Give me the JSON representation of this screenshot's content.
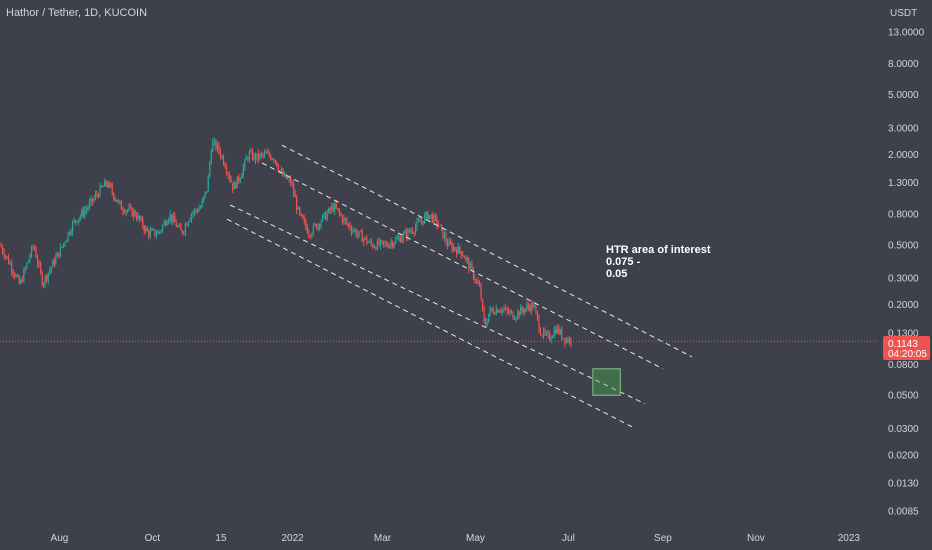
{
  "chart_data": {
    "type": "candlestick",
    "title": "Hathor / Tether, 1D, KUCOIN",
    "currency": "USDT",
    "scale": "log",
    "ylim": [
      0.0075,
      18
    ],
    "y_ticks": [
      "13.0000",
      "8.0000",
      "5.0000",
      "3.0000",
      "2.0000",
      "1.3000",
      "0.8000",
      "0.5000",
      "0.3000",
      "0.2000",
      "0.1300",
      "0.0800",
      "0.0500",
      "0.0300",
      "0.0200",
      "0.0130",
      "0.0085"
    ],
    "x_ticks": [
      "Aug",
      "Oct",
      "15",
      "2022",
      "Mar",
      "May",
      "Jul",
      "Sep",
      "Nov",
      "2023"
    ],
    "last_price": "0.1143",
    "countdown": "04:20:05",
    "annotation": [
      "HTR area of interest",
      "0.075 -",
      "0.05"
    ],
    "colors": {
      "up": "#26a69a",
      "down": "#ef5350",
      "background": "#3e404b",
      "text": "#d1d4dc",
      "zone": "#4caf50"
    },
    "price_path": [
      [
        "2021-06-23",
        0.5
      ],
      [
        "2021-07-01",
        0.35
      ],
      [
        "2021-07-06",
        0.27
      ],
      [
        "2021-07-15",
        0.5
      ],
      [
        "2021-07-21",
        0.28
      ],
      [
        "2021-08-01",
        0.45
      ],
      [
        "2021-08-10",
        0.7
      ],
      [
        "2021-08-20",
        0.9
      ],
      [
        "2021-08-26",
        1.1
      ],
      [
        "2021-09-01",
        1.3
      ],
      [
        "2021-09-10",
        0.9
      ],
      [
        "2021-09-20",
        0.8
      ],
      [
        "2021-09-28",
        0.6
      ],
      [
        "2021-10-05",
        0.6
      ],
      [
        "2021-10-12",
        0.8
      ],
      [
        "2021-10-20",
        0.6
      ],
      [
        "2021-10-26",
        0.8
      ],
      [
        "2021-11-02",
        0.9
      ],
      [
        "2021-11-06",
        1.2
      ],
      [
        "2021-11-09",
        2.4
      ],
      [
        "2021-11-13",
        2.2
      ],
      [
        "2021-11-18",
        1.7
      ],
      [
        "2021-11-23",
        1.2
      ],
      [
        "2021-11-27",
        1.4
      ],
      [
        "2021-12-03",
        2.0
      ],
      [
        "2021-12-08",
        1.9
      ],
      [
        "2021-12-15",
        2.0
      ],
      [
        "2021-12-20",
        1.9
      ],
      [
        "2021-12-25",
        1.45
      ],
      [
        "2021-12-31",
        1.3
      ],
      [
        "2022-01-05",
        0.8
      ],
      [
        "2022-01-12",
        0.6
      ],
      [
        "2022-01-18",
        0.7
      ],
      [
        "2022-01-28",
        0.9
      ],
      [
        "2022-02-05",
        0.7
      ],
      [
        "2022-02-12",
        0.6
      ],
      [
        "2022-02-22",
        0.5
      ],
      [
        "2022-03-03",
        0.5
      ],
      [
        "2022-03-12",
        0.55
      ],
      [
        "2022-03-22",
        0.65
      ],
      [
        "2022-03-31",
        0.8
      ],
      [
        "2022-04-06",
        0.7
      ],
      [
        "2022-04-13",
        0.5
      ],
      [
        "2022-04-22",
        0.45
      ],
      [
        "2022-04-29",
        0.33
      ],
      [
        "2022-05-04",
        0.25
      ],
      [
        "2022-05-07",
        0.14
      ],
      [
        "2022-05-10",
        0.18
      ],
      [
        "2022-05-17",
        0.19
      ],
      [
        "2022-05-26",
        0.17
      ],
      [
        "2022-06-03",
        0.19
      ],
      [
        "2022-06-08",
        0.2
      ],
      [
        "2022-06-13",
        0.13
      ],
      [
        "2022-06-18",
        0.12
      ],
      [
        "2022-06-23",
        0.14
      ],
      [
        "2022-06-28",
        0.12
      ],
      [
        "2022-07-03",
        0.115
      ]
    ],
    "channel_lines": [
      {
        "from": [
          "2021-12-25",
          2.3
        ],
        "to": [
          "2022-09-20",
          0.09
        ]
      },
      {
        "from": [
          "2021-12-12",
          1.75
        ],
        "to": [
          "2022-09-01",
          0.075
        ]
      },
      {
        "from": [
          "2021-11-21",
          0.92
        ],
        "to": [
          "2022-08-20",
          0.044
        ]
      },
      {
        "from": [
          "2021-11-19",
          0.74
        ],
        "to": [
          "2022-08-14",
          0.03
        ]
      }
    ],
    "target_zone": {
      "from": "2022-07-17",
      "to": "2022-08-04",
      "low": 0.05,
      "high": 0.075
    }
  }
}
